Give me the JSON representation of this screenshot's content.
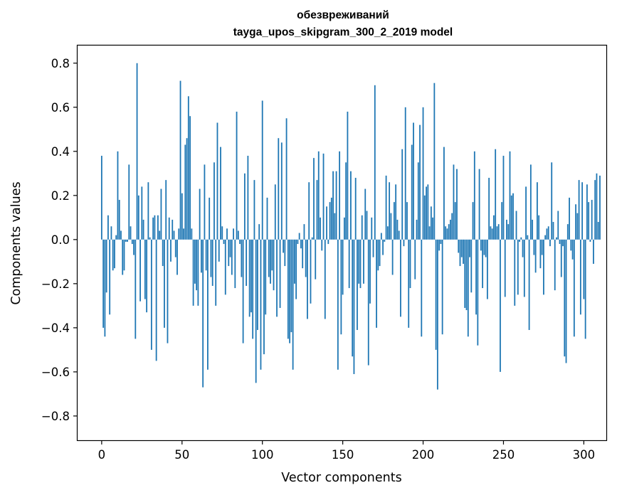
{
  "chart_data": {
    "type": "bar",
    "title_line1": "обезвреживаний",
    "title_line2": "tayga_upos_skipgram_300_2_2019 model",
    "xlabel": "Vector components",
    "ylabel": "Components values",
    "xlim": [
      -15,
      314
    ],
    "ylim": [
      -0.91,
      0.88
    ],
    "x_ticks": [
      0,
      50,
      100,
      150,
      200,
      250,
      300
    ],
    "x_tick_labels": [
      "0",
      "50",
      "100",
      "150",
      "200",
      "250",
      "300"
    ],
    "y_ticks": [
      0.8,
      0.6,
      0.4,
      0.2,
      0.0,
      -0.2,
      -0.4,
      -0.6,
      -0.8
    ],
    "y_tick_labels": [
      "0.8",
      "0.6",
      "0.4",
      "0.2",
      "0.0",
      "−0.2",
      "−0.4",
      "−0.6",
      "−0.8"
    ],
    "bar_color": "#1f77b4",
    "values": [
      0.38,
      -0.4,
      -0.44,
      -0.24,
      0.11,
      -0.34,
      0.06,
      -0.14,
      -0.13,
      0.02,
      0.4,
      0.18,
      0.04,
      -0.16,
      -0.14,
      -0.01,
      -0.01,
      0.34,
      0.06,
      -0.02,
      -0.07,
      -0.45,
      0.8,
      0.2,
      -0.28,
      0.24,
      0.09,
      -0.27,
      -0.33,
      0.26,
      0.01,
      -0.5,
      0.1,
      0.11,
      -0.55,
      0.11,
      0.04,
      0.23,
      -0.12,
      -0.4,
      0.27,
      -0.47,
      0.1,
      -0.1,
      0.09,
      0.04,
      -0.08,
      -0.16,
      0.05,
      0.72,
      0.21,
      0.05,
      0.43,
      0.46,
      0.65,
      0.56,
      0.05,
      -0.3,
      -0.2,
      -0.23,
      -0.3,
      0.23,
      -0.15,
      -0.67,
      0.34,
      -0.14,
      -0.59,
      0.19,
      -0.17,
      -0.21,
      0.35,
      -0.3,
      0.53,
      -0.1,
      0.42,
      0.06,
      -0.02,
      -0.25,
      0.05,
      -0.12,
      -0.08,
      -0.16,
      0.05,
      -0.22,
      0.58,
      0.04,
      -0.02,
      -0.17,
      -0.47,
      0.3,
      -0.21,
      0.38,
      -0.35,
      -0.33,
      -0.45,
      0.27,
      -0.65,
      -0.41,
      0.07,
      -0.59,
      0.63,
      -0.52,
      -0.34,
      0.19,
      -0.17,
      -0.2,
      -0.14,
      -0.23,
      0.25,
      -0.35,
      0.46,
      -0.31,
      0.44,
      -0.06,
      -0.12,
      0.55,
      -0.45,
      -0.47,
      -0.42,
      -0.59,
      -0.2,
      -0.27,
      -0.02,
      0.03,
      -0.04,
      -0.13,
      0.07,
      -0.17,
      -0.36,
      0.26,
      -0.29,
      0.01,
      0.37,
      -0.18,
      0.27,
      0.4,
      0.1,
      -0.05,
      0.39,
      -0.36,
      0.15,
      -0.02,
      0.17,
      0.19,
      0.31,
      0.12,
      0.31,
      -0.59,
      0.4,
      -0.43,
      -0.25,
      0.1,
      0.35,
      0.58,
      -0.22,
      0.31,
      -0.53,
      -0.61,
      0.28,
      -0.41,
      -0.2,
      -0.22,
      0.11,
      -0.2,
      0.23,
      0.13,
      -0.57,
      -0.29,
      0.1,
      -0.08,
      0.7,
      -0.4,
      -0.14,
      -0.12,
      0.03,
      -0.07,
      -0.01,
      0.29,
      0.06,
      0.26,
      0.12,
      -0.16,
      0.17,
      0.25,
      0.09,
      0.04,
      -0.35,
      0.41,
      -0.03,
      0.6,
      0.17,
      -0.4,
      -0.22,
      0.43,
      0.53,
      -0.18,
      0.09,
      0.35,
      0.52,
      -0.44,
      0.6,
      0.2,
      0.24,
      0.25,
      0.06,
      0.15,
      0.1,
      0.71,
      -0.5,
      -0.68,
      -0.05,
      -0.02,
      -0.43,
      0.42,
      0.06,
      0.05,
      0.07,
      0.09,
      0.12,
      0.34,
      0.17,
      0.32,
      -0.06,
      -0.12,
      -0.08,
      -0.11,
      -0.31,
      -0.32,
      -0.44,
      -0.08,
      -0.24,
      0.17,
      0.4,
      -0.34,
      -0.48,
      0.32,
      -0.05,
      -0.22,
      -0.07,
      -0.08,
      -0.27,
      0.28,
      0.06,
      0.05,
      0.11,
      0.41,
      0.06,
      0.07,
      -0.6,
      0.17,
      0.38,
      -0.26,
      0.09,
      0.07,
      0.4,
      0.2,
      0.21,
      -0.3,
      0.13,
      -0.25,
      -0.01,
      0.01,
      -0.08,
      -0.26,
      0.24,
      0.02,
      -0.41,
      0.34,
      0.09,
      -0.07,
      -0.15,
      0.26,
      0.11,
      -0.13,
      -0.07,
      -0.25,
      0.02,
      0.05,
      0.06,
      -0.03,
      0.35,
      0.08,
      -0.23,
      0.01,
      0.13,
      -0.02,
      -0.17,
      -0.03,
      -0.53,
      -0.56,
      0.07,
      0.19,
      -0.05,
      -0.09,
      -0.44,
      0.16,
      0.12,
      0.27,
      -0.34,
      0.26,
      -0.27,
      -0.45,
      0.25,
      0.17,
      -0.01,
      0.18,
      -0.11,
      0.27,
      0.3,
      0.08,
      0.29
    ]
  }
}
